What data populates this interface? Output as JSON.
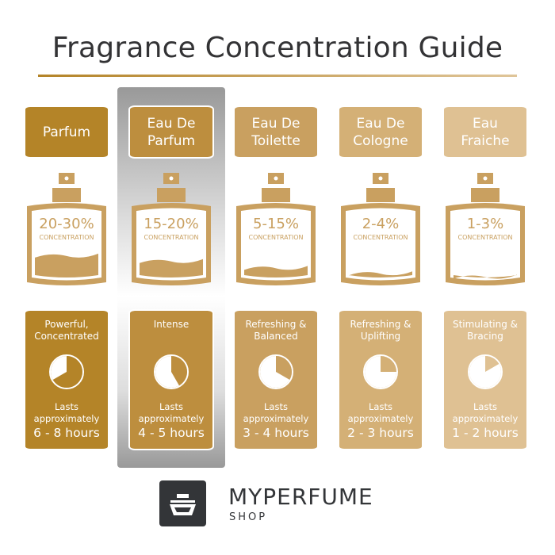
{
  "title": "Fragrance Concentration Guide",
  "highlighted": "Eau De Parfum",
  "columns": [
    {
      "name_lines": [
        "Parfum"
      ],
      "concentration": "20-30%",
      "concentration_label": "CONCENTRATION",
      "fill_level": 0.35,
      "description": "Powerful, Concentrated",
      "lasts": "Lasts approximately",
      "hours": "6 - 8 hours",
      "pie_hours": 8,
      "color": "#b48428"
    },
    {
      "name_lines": [
        "Eau De",
        "Parfum"
      ],
      "concentration": "15-20%",
      "concentration_label": "CONCENTRATION",
      "fill_level": 0.27,
      "description": "Intense",
      "lasts": "Lasts approximately",
      "hours": "4 - 5 hours",
      "pie_hours": 5,
      "color": "#bd8e3e"
    },
    {
      "name_lines": [
        "Eau De",
        "Toilette"
      ],
      "concentration": "5-15%",
      "concentration_label": "CONCENTRATION",
      "fill_level": 0.17,
      "description": "Refreshing & Balanced",
      "lasts": "Lasts approximately",
      "hours": "3 - 4 hours",
      "pie_hours": 4,
      "color": "#c9a060"
    },
    {
      "name_lines": [
        "Eau De",
        "Cologne"
      ],
      "concentration": "2-4%",
      "concentration_label": "CONCENTRATION",
      "fill_level": 0.09,
      "description": "Refreshing & Uplifting",
      "lasts": "Lasts approximately",
      "hours": "2 - 3 hours",
      "pie_hours": 3,
      "color": "#d4b076"
    },
    {
      "name_lines": [
        "Eau",
        "Fraiche"
      ],
      "concentration": "1-3%",
      "concentration_label": "CONCENTRATION",
      "fill_level": 0.04,
      "description": "Stimulating & Bracing",
      "lasts": "Lasts approximately",
      "hours": "1 - 2 hours",
      "pie_hours": 2,
      "color": "#dfc193"
    }
  ],
  "bottle_color": "#c9a060",
  "logo": {
    "brand": "MYPERFUME",
    "sub": "SHOP"
  }
}
